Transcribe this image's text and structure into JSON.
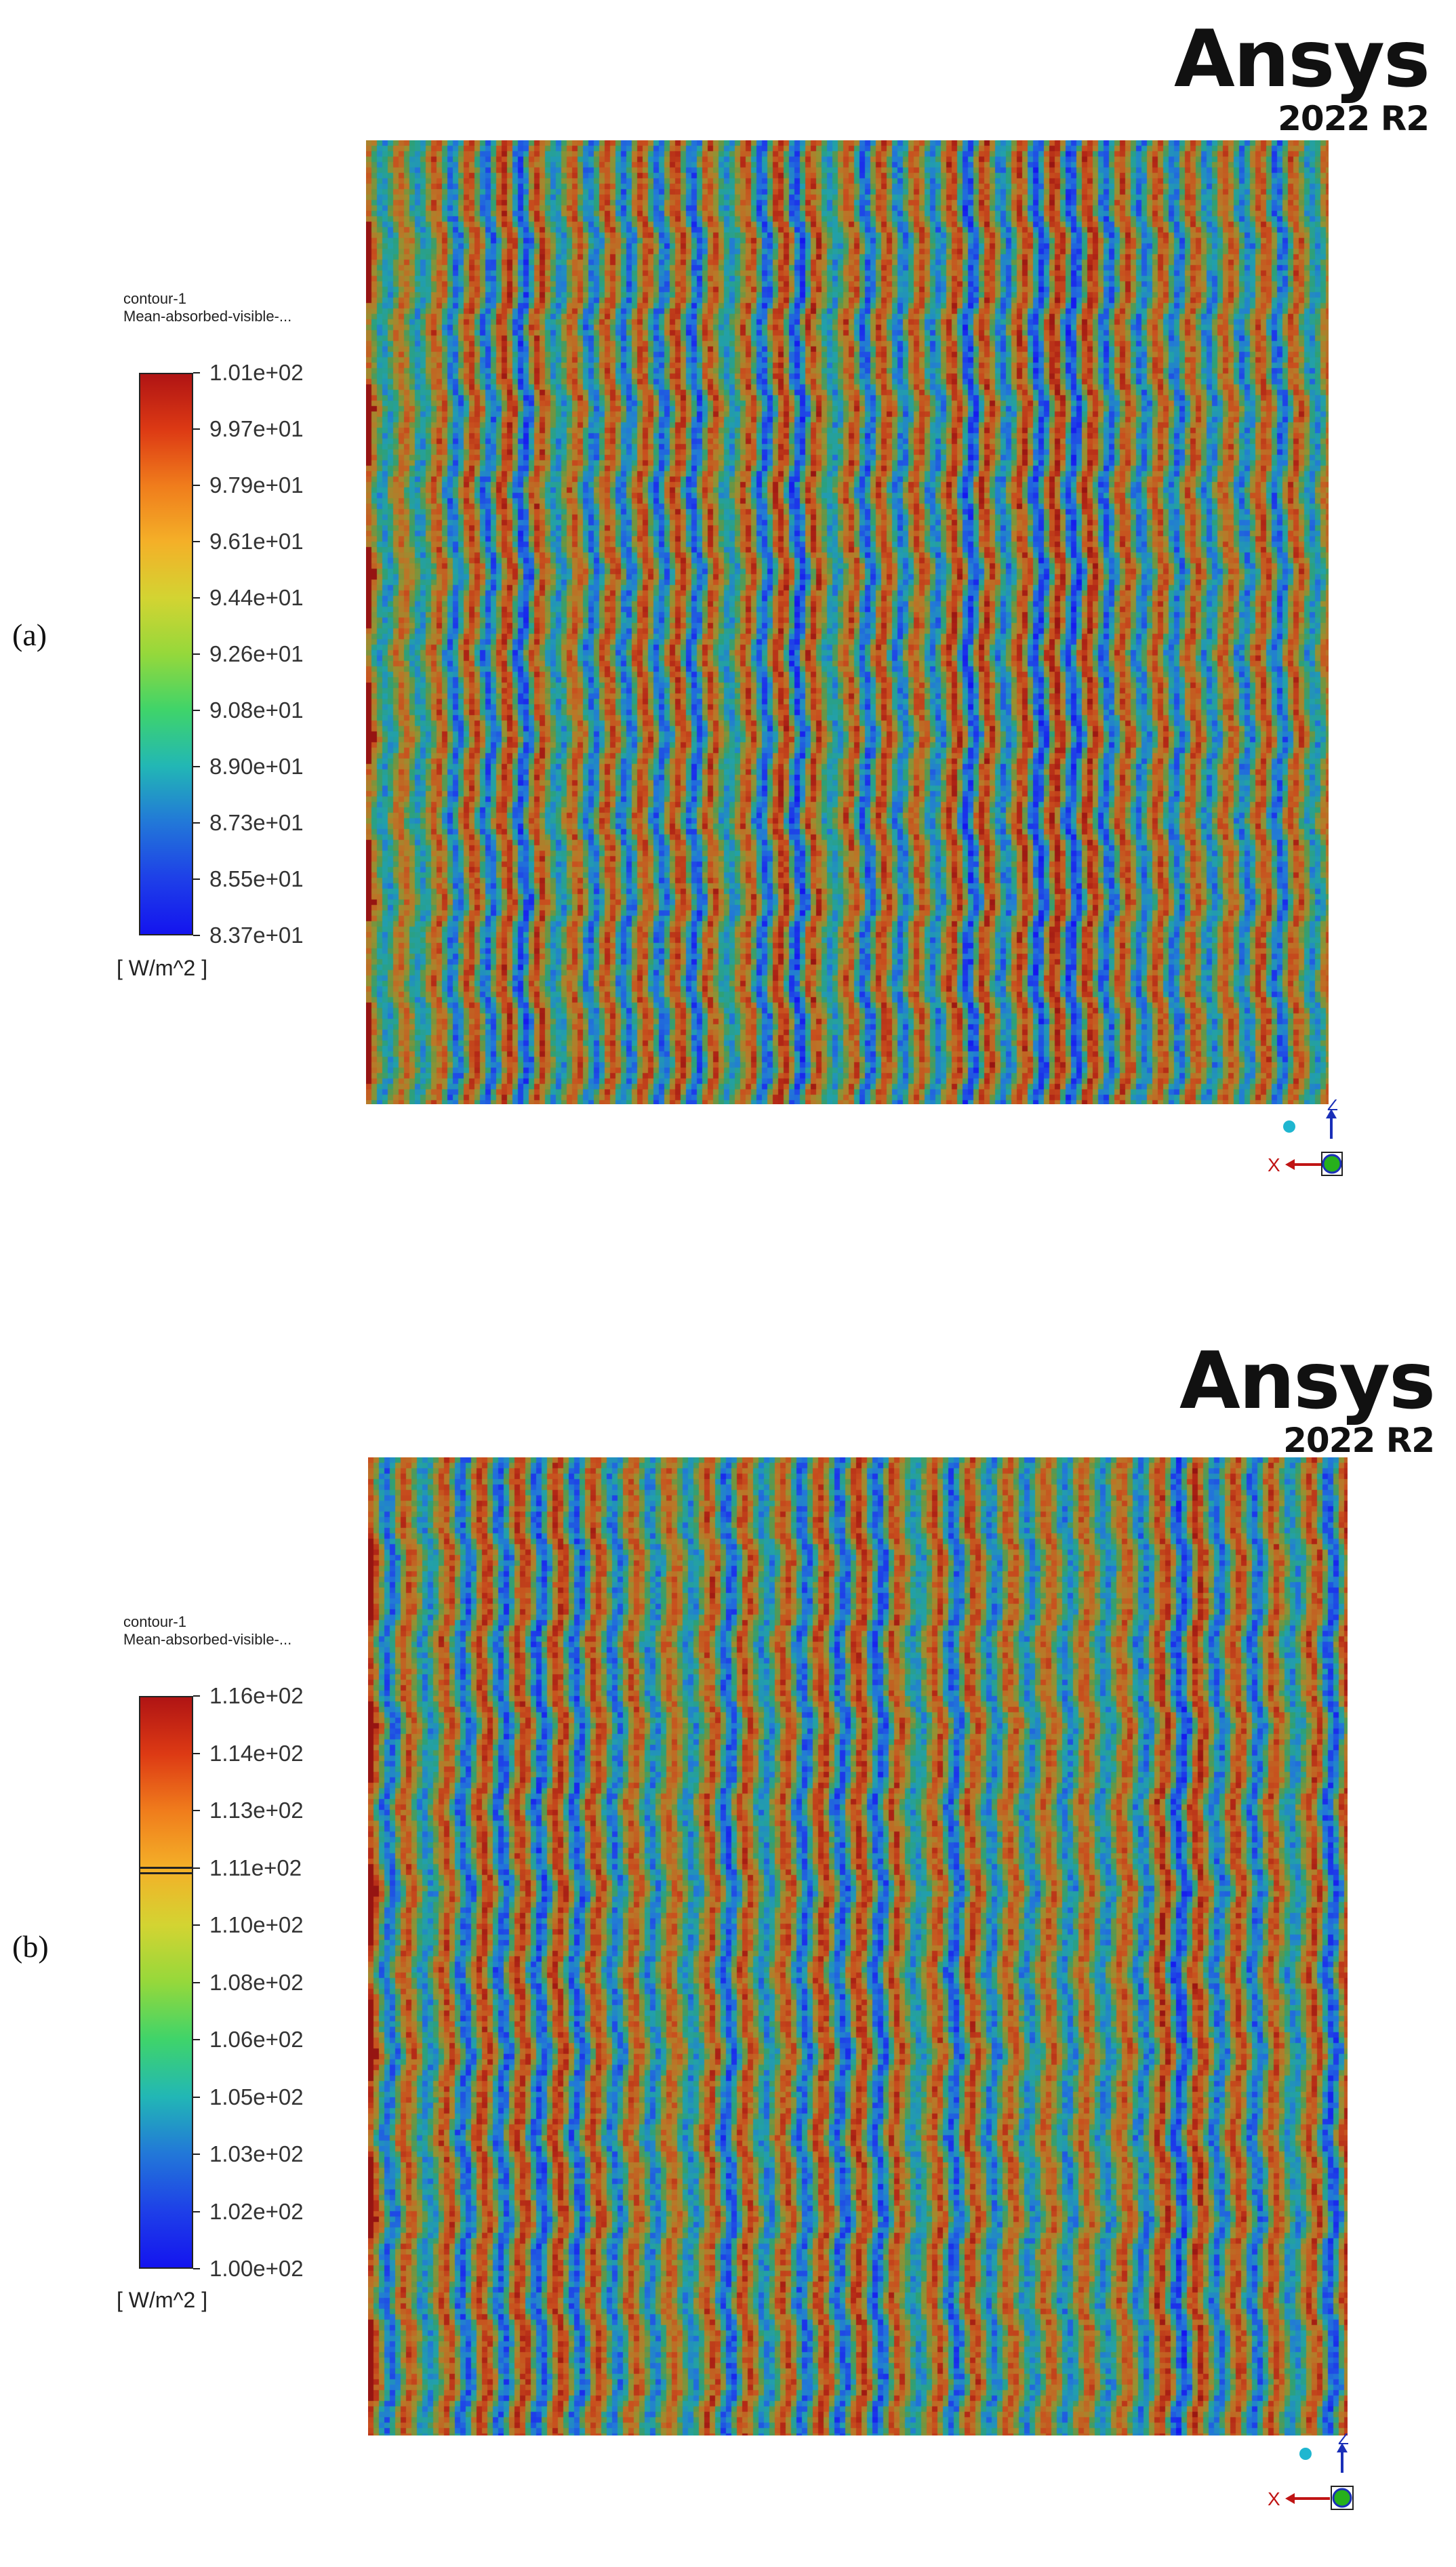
{
  "panels": [
    {
      "label": "(a)",
      "logo": "Ansys",
      "version": "2022 R2",
      "contour_name": "contour-1",
      "variable": "Mean-absorbed-visible-...",
      "unit": "[ W/m^2 ]",
      "ticks": [
        "1.01e+02",
        "9.97e+01",
        "9.79e+01",
        "9.61e+01",
        "9.44e+01",
        "9.26e+01",
        "9.08e+01",
        "8.90e+01",
        "8.73e+01",
        "8.55e+01",
        "8.37e+01"
      ],
      "stripe_count": 28,
      "axes": {
        "up": "Z",
        "left": "X"
      }
    },
    {
      "label": "(b)",
      "logo": "Ansys",
      "version": "2022 R2",
      "contour_name": "contour-1",
      "variable": "Mean-absorbed-visible-...",
      "unit": "[ W/m^2 ]",
      "ticks": [
        "1.16e+02",
        "1.14e+02",
        "1.13e+02",
        "1.11e+02",
        "1.10e+02",
        "1.08e+02",
        "1.06e+02",
        "1.05e+02",
        "1.03e+02",
        "1.02e+02",
        "1.00e+02"
      ],
      "stripe_count": 26,
      "axes": {
        "up": "Z",
        "left": "X"
      }
    }
  ],
  "colors": {
    "high": "#b01414",
    "mid": "#d3d432",
    "low": "#1414ef"
  }
}
